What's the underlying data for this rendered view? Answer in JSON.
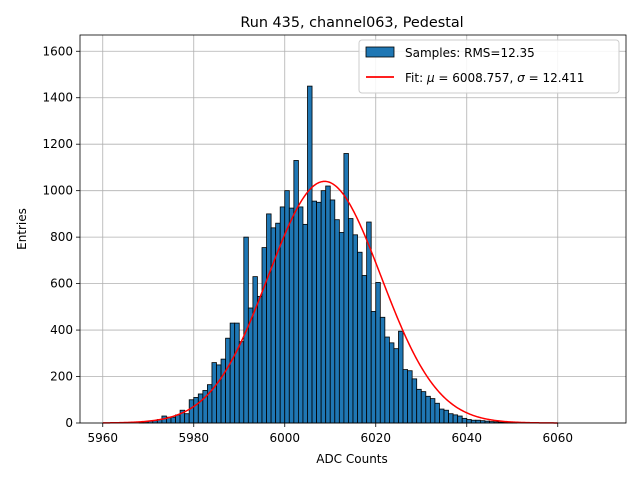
{
  "chart_data": {
    "type": "bar",
    "title": "Run 435, channel063, Pedestal",
    "xlabel": "ADC Counts",
    "ylabel": "Entries",
    "xlim": [
      5955,
      6075
    ],
    "ylim": [
      0,
      1670
    ],
    "xticks": [
      5960,
      5980,
      6000,
      6020,
      6040,
      6060
    ],
    "yticks": [
      0,
      200,
      400,
      600,
      800,
      1000,
      1200,
      1400,
      1600
    ],
    "grid": true,
    "legend_position": "top-right",
    "bin_width": 1,
    "bar_color": "#1f77b4",
    "fit_color": "#ff0000",
    "histogram": {
      "label": "Samples: RMS=12.35",
      "x": [
        5968,
        5969,
        5970,
        5971,
        5972,
        5973,
        5974,
        5975,
        5976,
        5977,
        5978,
        5979,
        5980,
        5981,
        5982,
        5983,
        5984,
        5985,
        5986,
        5987,
        5988,
        5989,
        5990,
        5991,
        5992,
        5993,
        5994,
        5995,
        5996,
        5997,
        5998,
        5999,
        6000,
        6001,
        6002,
        6003,
        6004,
        6005,
        6006,
        6007,
        6008,
        6009,
        6010,
        6011,
        6012,
        6013,
        6014,
        6015,
        6016,
        6017,
        6018,
        6019,
        6020,
        6021,
        6022,
        6023,
        6024,
        6025,
        6026,
        6027,
        6028,
        6029,
        6030,
        6031,
        6032,
        6033,
        6034,
        6035,
        6036,
        6037,
        6038,
        6039,
        6040,
        6041,
        6042,
        6043,
        6044,
        6045,
        6046,
        6047,
        6048,
        6049,
        6050
      ],
      "values": [
        3,
        5,
        8,
        10,
        15,
        30,
        25,
        25,
        35,
        55,
        40,
        100,
        110,
        125,
        140,
        165,
        260,
        250,
        275,
        365,
        430,
        430,
        350,
        800,
        495,
        630,
        545,
        755,
        900,
        840,
        860,
        930,
        1000,
        925,
        1130,
        930,
        855,
        1450,
        955,
        950,
        1000,
        1020,
        960,
        875,
        820,
        1160,
        880,
        810,
        735,
        635,
        865,
        480,
        605,
        455,
        370,
        345,
        320,
        395,
        230,
        225,
        190,
        145,
        135,
        115,
        105,
        85,
        60,
        55,
        40,
        35,
        30,
        20,
        15,
        12,
        12,
        10,
        8,
        6,
        5,
        4,
        3,
        2,
        1
      ]
    },
    "fit": {
      "label": "Fit: μ = 6008.757, σ = 12.411",
      "label_prefix": "Fit: ",
      "label_mu": "μ",
      "label_mid": " = 6008.757, ",
      "label_sigma": "σ",
      "label_end": " = 12.411",
      "mu": 6008.757,
      "sigma": 12.411,
      "amplitude": 1040,
      "x_range": [
        5960,
        6060
      ]
    }
  }
}
